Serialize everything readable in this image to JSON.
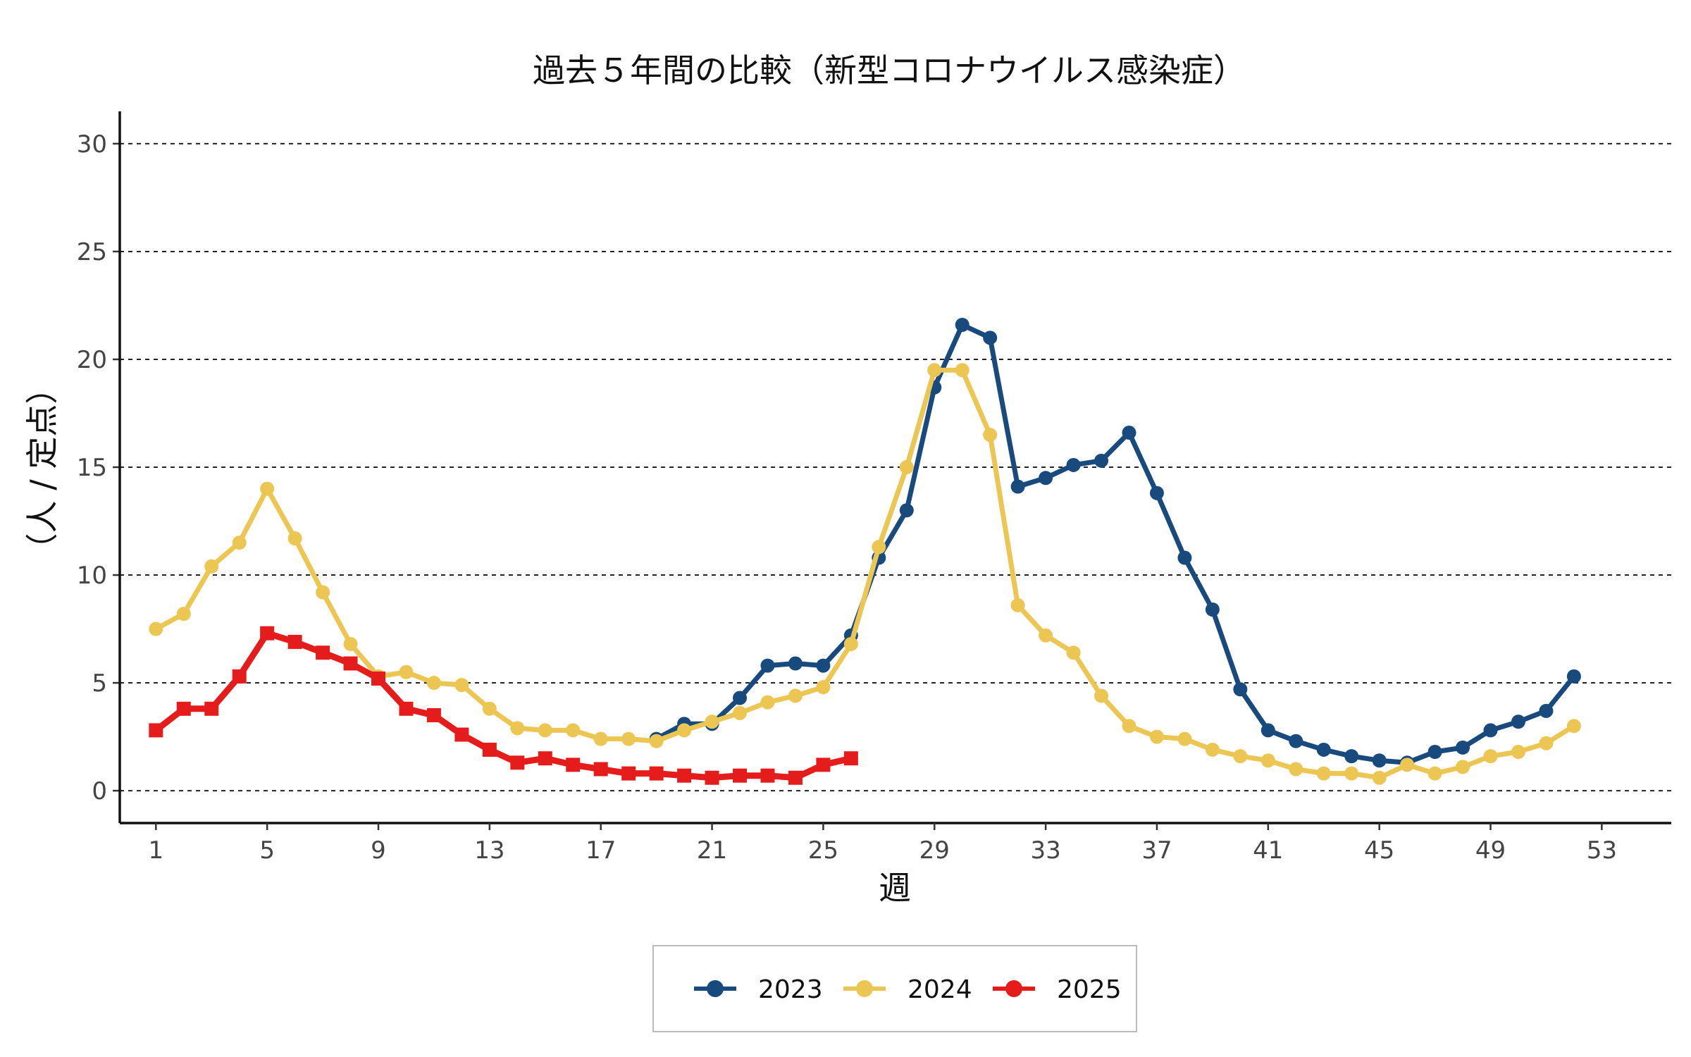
{
  "chart_data": {
    "type": "line",
    "title": "過去５年間の比較（新型コロナウイルス感染症）",
    "xlabel": "週",
    "ylabel": "（人 / 定点）",
    "xlim": [
      -0.3,
      55.5
    ],
    "ylim": [
      -1.5,
      31.5
    ],
    "xticks": [
      1,
      5,
      9,
      13,
      17,
      21,
      25,
      29,
      33,
      37,
      41,
      45,
      49,
      53
    ],
    "yticks": [
      0,
      5,
      10,
      15,
      20,
      25,
      30
    ],
    "grid": "horizontal-dashed",
    "legend_position": "bottom",
    "series": [
      {
        "name": "2023",
        "color": "#184a7e",
        "marker": "circle",
        "x": [
          19,
          20,
          21,
          22,
          23,
          24,
          25,
          26,
          27,
          28,
          29,
          30,
          31,
          32,
          33,
          34,
          35,
          36,
          37,
          38,
          39,
          40,
          41,
          42,
          43,
          44,
          45,
          46,
          47,
          48,
          49,
          50,
          51,
          52
        ],
        "y": [
          2.4,
          3.1,
          3.1,
          4.3,
          5.8,
          5.9,
          5.8,
          7.2,
          10.8,
          13.0,
          18.7,
          21.6,
          21.0,
          14.1,
          14.5,
          15.1,
          15.3,
          16.6,
          13.8,
          10.8,
          8.4,
          4.7,
          2.8,
          2.3,
          1.9,
          1.6,
          1.4,
          1.3,
          1.8,
          2.0,
          2.8,
          3.2,
          3.7,
          5.3
        ]
      },
      {
        "name": "2024",
        "color": "#ecc653",
        "marker": "circle",
        "x": [
          1,
          2,
          3,
          4,
          5,
          6,
          7,
          8,
          9,
          10,
          11,
          12,
          13,
          14,
          15,
          16,
          17,
          18,
          19,
          20,
          21,
          22,
          23,
          24,
          25,
          26,
          27,
          28,
          29,
          30,
          31,
          32,
          33,
          34,
          35,
          36,
          37,
          38,
          39,
          40,
          41,
          42,
          43,
          44,
          45,
          46,
          47,
          48,
          49,
          50,
          51,
          52
        ],
        "y": [
          7.5,
          8.2,
          10.4,
          11.5,
          14.0,
          11.7,
          9.2,
          6.8,
          5.3,
          5.5,
          5.0,
          4.9,
          3.8,
          2.9,
          2.8,
          2.8,
          2.4,
          2.4,
          2.3,
          2.8,
          3.2,
          3.6,
          4.1,
          4.4,
          4.8,
          6.8,
          11.3,
          15.0,
          19.5,
          19.5,
          16.5,
          8.6,
          7.2,
          6.4,
          4.4,
          3.0,
          2.5,
          2.4,
          1.9,
          1.6,
          1.4,
          1.0,
          0.8,
          0.8,
          0.6,
          1.2,
          0.8,
          1.1,
          1.6,
          1.8,
          2.2,
          3.0
        ]
      },
      {
        "name": "2025",
        "color": "#e51c1c",
        "marker": "square",
        "x": [
          1,
          2,
          3,
          4,
          5,
          6,
          7,
          8,
          9,
          10,
          11,
          12,
          13,
          14,
          15,
          16,
          17,
          18,
          19,
          20,
          21,
          22,
          23,
          24,
          25,
          26
        ],
        "y": [
          2.8,
          3.8,
          3.8,
          5.3,
          7.3,
          6.9,
          6.4,
          5.9,
          5.2,
          3.8,
          3.5,
          2.6,
          1.9,
          1.3,
          1.5,
          1.2,
          1.0,
          0.8,
          0.8,
          0.7,
          0.6,
          0.7,
          0.7,
          0.6,
          1.2,
          1.5
        ]
      }
    ]
  }
}
